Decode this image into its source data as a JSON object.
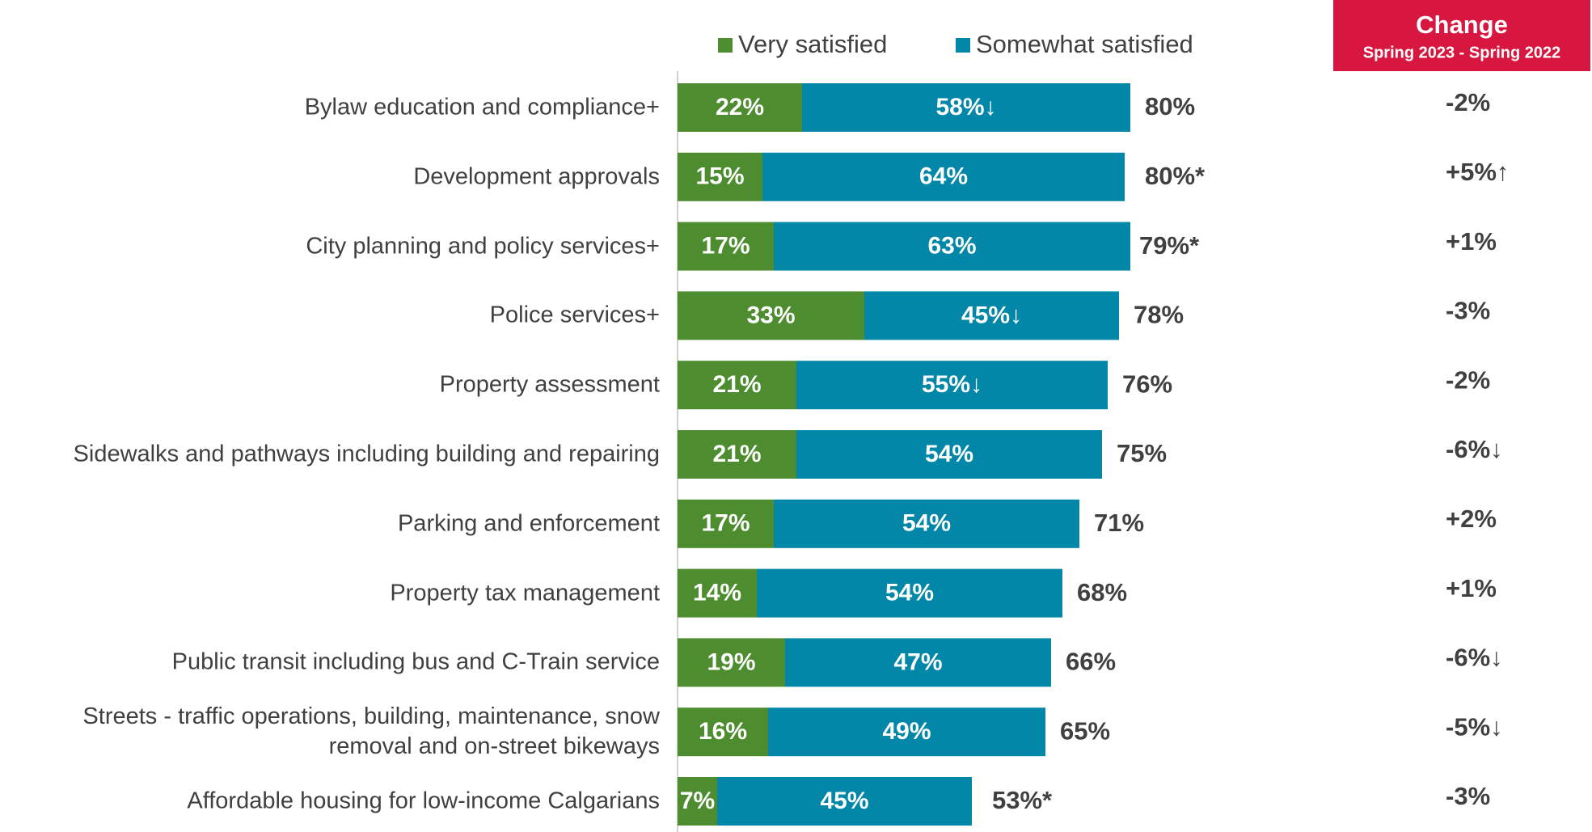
{
  "chart_data": {
    "type": "stacked-bar-horizontal",
    "categories": [
      "Bylaw education and compliance+",
      "Development approvals",
      "City planning and policy services+",
      "Police services+",
      "Property assessment",
      "Sidewalks and pathways including building and repairing",
      "Parking and enforcement",
      "Property tax management",
      "Public transit including bus and C-Train service",
      "Streets - traffic operations, building, maintenance, snow removal and on-street bikeways",
      "Affordable housing for low-income Calgarians"
    ],
    "series": [
      {
        "name": "Very satisfied",
        "color": "#4e8d2f",
        "values": [
          22,
          15,
          17,
          33,
          21,
          21,
          17,
          14,
          19,
          16,
          7
        ]
      },
      {
        "name": "Somewhat satisfied",
        "color": "#0287a8",
        "values": [
          58,
          64,
          63,
          45,
          55,
          54,
          54,
          54,
          47,
          49,
          45
        ],
        "value_labels": [
          "58%↓",
          "64%",
          "63%",
          "45%↓",
          "55%↓",
          "54%",
          "54%",
          "54%",
          "47%",
          "49%",
          "45%"
        ]
      }
    ],
    "totals": {
      "values": [
        80,
        80,
        79,
        78,
        76,
        75,
        71,
        68,
        66,
        65,
        53
      ],
      "value_labels": [
        "80%",
        "80%*",
        "79%*",
        "78%",
        "76%",
        "75%",
        "71%",
        "68%",
        "66%",
        "65%",
        "53%*"
      ]
    },
    "change": {
      "title": "Change",
      "subtitle": "Spring 2023 - Spring 2022",
      "color": "#d7173f",
      "values": [
        -2,
        5,
        1,
        -3,
        -2,
        -6,
        2,
        1,
        -6,
        -5,
        -3
      ],
      "value_labels": [
        "-2%",
        "+5%↑",
        "+1%",
        "-3%",
        "-2%",
        "-6%↓",
        "+2%",
        "+1%",
        "-6%↓",
        "-5%↓",
        "-3%"
      ]
    },
    "legend": "top"
  }
}
